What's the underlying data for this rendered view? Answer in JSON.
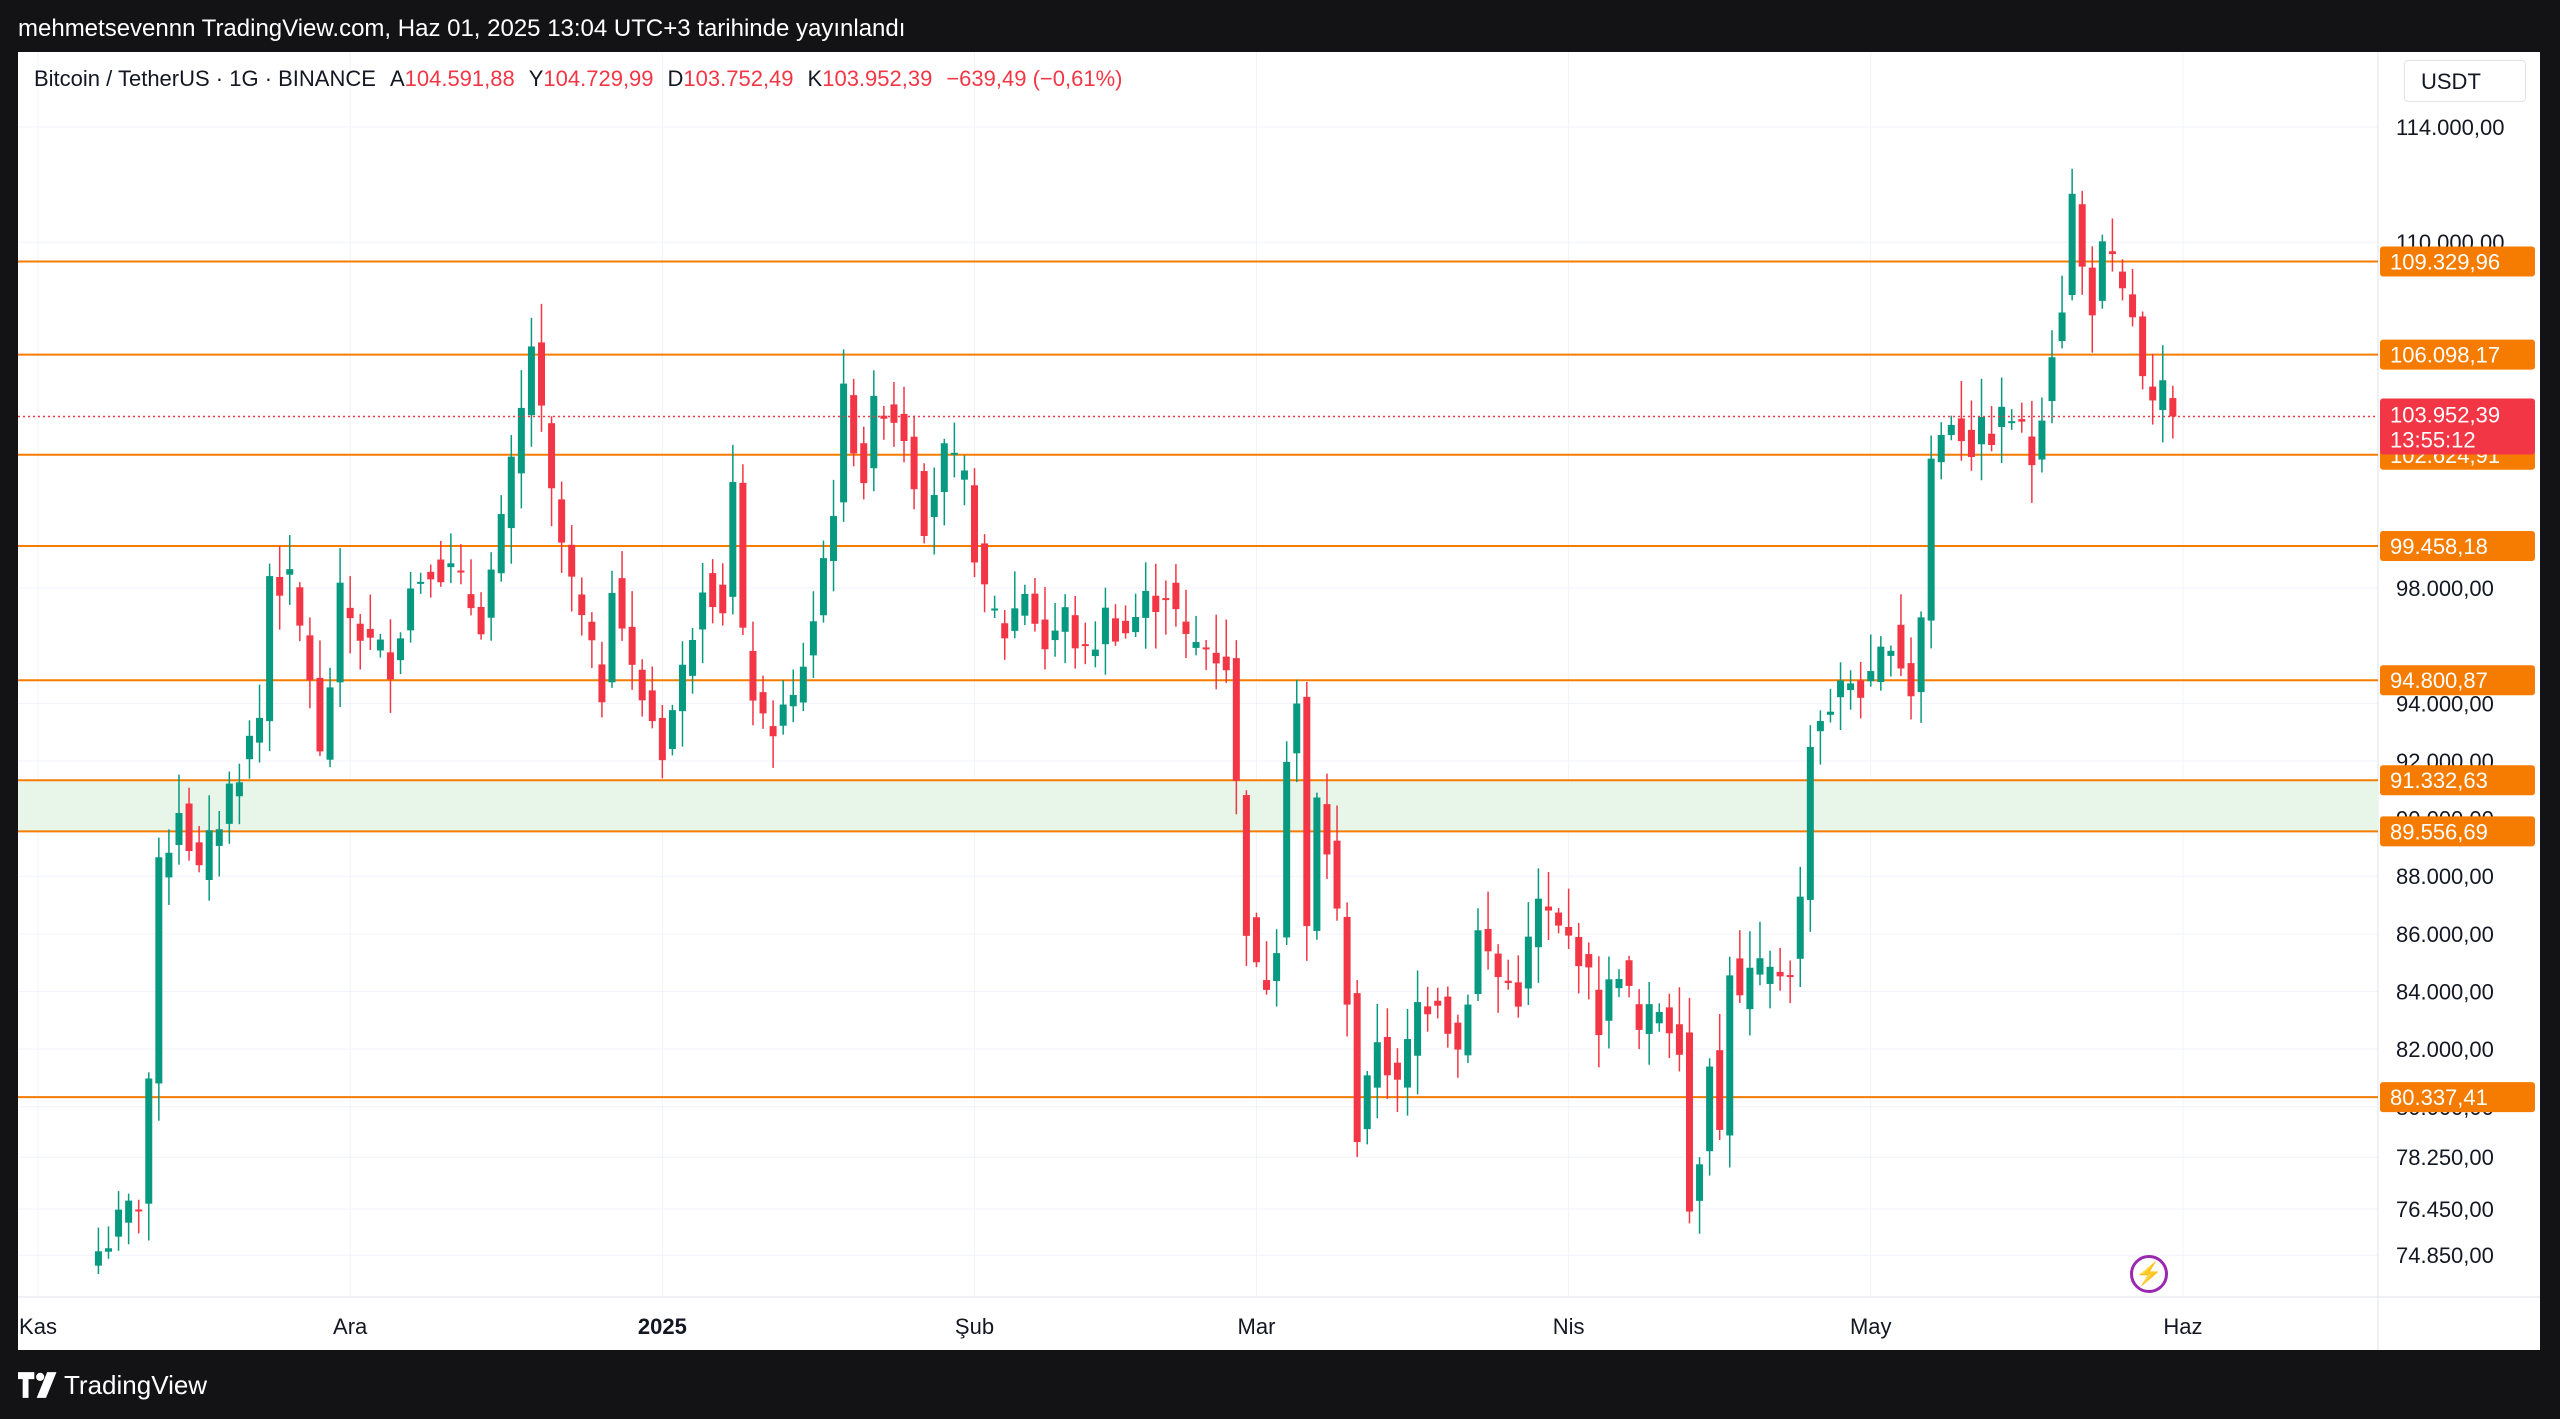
{
  "header": {
    "publish_line": "mehmetsevennn TradingView.com, Haz 01, 2025 13:04 UTC+3 tarihinde yayınlandı"
  },
  "legend": {
    "symbol": "Bitcoin / TetherUS · 1G · BINANCE",
    "open_label": "A",
    "open": "104.591,88",
    "high_label": "Y",
    "high": "104.729,99",
    "low_label": "D",
    "low": "103.752,49",
    "close_label": "K",
    "close": "103.952,39",
    "change": "−639,49 (−0,61%)"
  },
  "currency_button": "USDT",
  "footer": {
    "brand": "TradingView"
  },
  "colors": {
    "up": "#089981",
    "down": "#f23645",
    "level": "#f57c00",
    "zone": "#e8f5e9",
    "price_label": "#f23645"
  },
  "icons": [
    "bolt-icon",
    "tradingview-logo-icon"
  ],
  "chart_data": {
    "type": "candlestick",
    "symbol": "BTC/USDT",
    "timeframe": "1D",
    "ylim": [
      73400,
      116600
    ],
    "y_ticks": [
      {
        "v": 114000,
        "label": "114.000,00"
      },
      {
        "v": 110000,
        "label": "110.000,00"
      },
      {
        "v": 98000,
        "label": "98.000,00"
      },
      {
        "v": 94000,
        "label": "94.000,00"
      },
      {
        "v": 92000,
        "label": "92.000,00"
      },
      {
        "v": 90000,
        "label": "90.000,00"
      },
      {
        "v": 88000,
        "label": "88.000,00"
      },
      {
        "v": 86000,
        "label": "86.000,00"
      },
      {
        "v": 84000,
        "label": "84.000,00"
      },
      {
        "v": 82000,
        "label": "82.000,00"
      },
      {
        "v": 80000,
        "label": "80.000,00"
      },
      {
        "v": 78250,
        "label": "78.250,00"
      },
      {
        "v": 76450,
        "label": "76.450,00"
      },
      {
        "v": 74850,
        "label": "74.850,00"
      }
    ],
    "x_labels": [
      {
        "i": 0,
        "label": "Kas",
        "bold": false
      },
      {
        "i": 31,
        "label": "Ara",
        "bold": false
      },
      {
        "i": 62,
        "label": "2025",
        "bold": true
      },
      {
        "i": 93,
        "label": "Şub",
        "bold": false
      },
      {
        "i": 121,
        "label": "Mar",
        "bold": false
      },
      {
        "i": 152,
        "label": "Nis",
        "bold": false
      },
      {
        "i": 182,
        "label": "May",
        "bold": false
      },
      {
        "i": 213,
        "label": "Haz",
        "bold": false
      }
    ],
    "levels": [
      {
        "value": 109329.96,
        "label": "109.329,96"
      },
      {
        "value": 106098.17,
        "label": "106.098,17"
      },
      {
        "value": 102624.91,
        "label": "102.624,91"
      },
      {
        "value": 99458.18,
        "label": "99.458,18"
      },
      {
        "value": 94800.87,
        "label": "94.800,87"
      },
      {
        "value": 91332.63,
        "label": "91.332,63"
      },
      {
        "value": 89556.69,
        "label": "89.556,69"
      },
      {
        "value": 80337.41,
        "label": "80.337,41"
      }
    ],
    "zone": [
      89556.69,
      91332.63
    ],
    "last_price": {
      "value": 103952.39,
      "label": "103.952,39",
      "countdown": "13:55:12"
    },
    "anchors": [
      [
        6,
        75000
      ],
      [
        10,
        76800
      ],
      [
        11,
        81000
      ],
      [
        12,
        88000
      ],
      [
        14,
        90500
      ],
      [
        16,
        88000
      ],
      [
        19,
        91000
      ],
      [
        22,
        93500
      ],
      [
        23,
        98500
      ],
      [
        25,
        98000
      ],
      [
        27,
        95000
      ],
      [
        28,
        92000
      ],
      [
        30,
        97500
      ],
      [
        33,
        96000
      ],
      [
        35,
        95500
      ],
      [
        37,
        98000
      ],
      [
        39,
        99000
      ],
      [
        41,
        98500
      ],
      [
        44,
        97000
      ],
      [
        46,
        100000
      ],
      [
        48,
        104000
      ],
      [
        49,
        106500
      ],
      [
        51,
        101000
      ],
      [
        53,
        98000
      ],
      [
        55,
        95500
      ],
      [
        56,
        94500
      ],
      [
        57,
        98500
      ],
      [
        59,
        95000
      ],
      [
        61,
        93500
      ],
      [
        62,
        92500
      ],
      [
        64,
        95000
      ],
      [
        66,
        98500
      ],
      [
        68,
        97500
      ],
      [
        69,
        101500
      ],
      [
        70,
        96000
      ],
      [
        72,
        93000
      ],
      [
        75,
        94000
      ],
      [
        77,
        97000
      ],
      [
        78,
        99000
      ],
      [
        79,
        101000
      ],
      [
        80,
        104500
      ],
      [
        82,
        102000
      ],
      [
        83,
        104000
      ],
      [
        84,
        104500
      ],
      [
        86,
        103500
      ],
      [
        88,
        100500
      ],
      [
        90,
        102500
      ],
      [
        92,
        101500
      ],
      [
        94,
        97500
      ],
      [
        96,
        96500
      ],
      [
        98,
        98000
      ],
      [
        100,
        96000
      ],
      [
        102,
        97000
      ],
      [
        104,
        95500
      ],
      [
        106,
        97000
      ],
      [
        108,
        96500
      ],
      [
        110,
        97500
      ],
      [
        112,
        98000
      ],
      [
        114,
        96000
      ],
      [
        116,
        96000
      ],
      [
        118,
        95500
      ],
      [
        119,
        91000
      ],
      [
        120,
        86500
      ],
      [
        121,
        84500
      ],
      [
        122,
        84500
      ],
      [
        123,
        86000
      ],
      [
        124,
        92500
      ],
      [
        125,
        94000
      ],
      [
        126,
        86000
      ],
      [
        127,
        90500
      ],
      [
        128,
        89000
      ],
      [
        129,
        86500
      ],
      [
        130,
        84000
      ],
      [
        131,
        79000
      ],
      [
        132,
        80500
      ],
      [
        133,
        82500
      ],
      [
        135,
        80500
      ],
      [
        137,
        83500
      ],
      [
        139,
        84000
      ],
      [
        141,
        82000
      ],
      [
        143,
        86000
      ],
      [
        145,
        84500
      ],
      [
        147,
        84000
      ],
      [
        149,
        87000
      ],
      [
        151,
        86000
      ],
      [
        153,
        85500
      ],
      [
        155,
        83000
      ],
      [
        157,
        85000
      ],
      [
        159,
        82500
      ],
      [
        161,
        83500
      ],
      [
        163,
        82500
      ],
      [
        164,
        76500
      ],
      [
        165,
        78500
      ],
      [
        166,
        82000
      ],
      [
        167,
        79000
      ],
      [
        168,
        85000
      ],
      [
        169,
        83500
      ],
      [
        170,
        84500
      ],
      [
        172,
        84500
      ],
      [
        174,
        85000
      ],
      [
        175,
        87000
      ],
      [
        176,
        93000
      ],
      [
        178,
        94000
      ],
      [
        180,
        94800
      ],
      [
        182,
        94500
      ],
      [
        184,
        96500
      ],
      [
        186,
        94500
      ],
      [
        187,
        97000
      ],
      [
        188,
        102500
      ],
      [
        190,
        104000
      ],
      [
        192,
        103000
      ],
      [
        194,
        103500
      ],
      [
        196,
        104000
      ],
      [
        198,
        102500
      ],
      [
        199,
        104500
      ],
      [
        200,
        106500
      ],
      [
        201,
        108000
      ],
      [
        202,
        111500
      ],
      [
        203,
        109000
      ],
      [
        204,
        108000
      ],
      [
        205,
        109500
      ],
      [
        206,
        109000
      ],
      [
        207,
        108000
      ],
      [
        208,
        107500
      ],
      [
        209,
        105000
      ],
      [
        210,
        104000
      ],
      [
        211,
        104600
      ],
      [
        212,
        103952
      ]
    ]
  }
}
